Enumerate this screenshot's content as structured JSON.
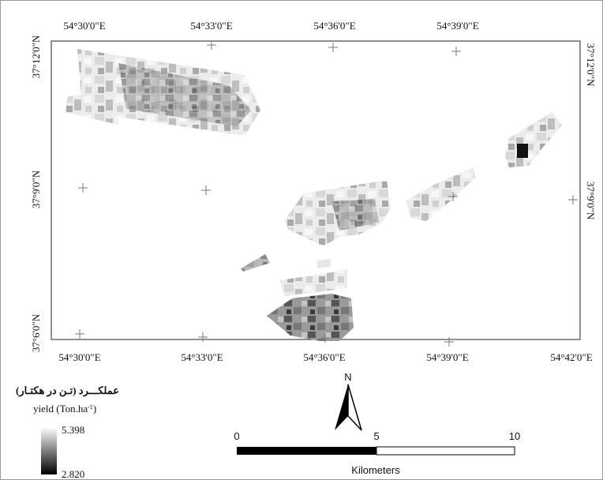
{
  "map": {
    "top_labels": [
      "54°30'0\"E",
      "54°33'0\"E",
      "54°36'0\"E",
      "54°39'0\"E"
    ],
    "bottom_labels": [
      "54°30'0\"E",
      "54°33'0\"E",
      "54°36'0\"E",
      "54°39'0\"E",
      "54°42'0\"E"
    ],
    "left_labels": [
      "37°12'0\"N",
      "37°9'0\"N",
      "37°6'0\"N"
    ],
    "right_labels": [
      "37°12'0\"N",
      "37°9'0\"N"
    ]
  },
  "legend": {
    "title": "عملکـــرد (تـن در هکتـار)",
    "yield_label": {
      "text": "yield (Ton.ha",
      "sup": "-1",
      "close": ")"
    },
    "max": "5.398",
    "min": "2.820"
  },
  "north": "N",
  "scale_bar": {
    "ticks": [
      "0",
      "5",
      "10"
    ],
    "unit": "Kilometers"
  }
}
